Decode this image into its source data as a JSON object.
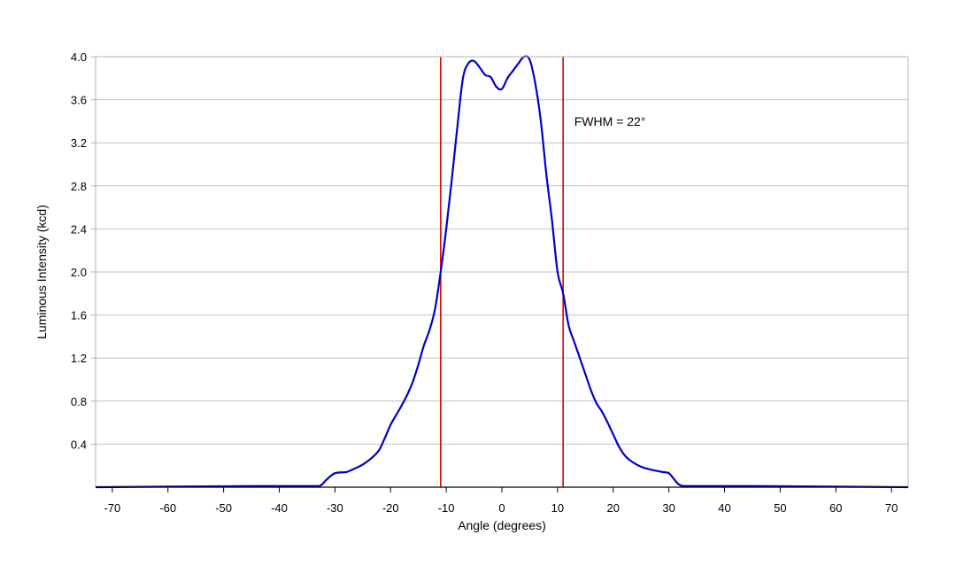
{
  "chart_data": {
    "type": "line",
    "title": "",
    "xlabel": "Angle (degrees)",
    "ylabel": "Luminous Intensity (kcd)",
    "xlim": [
      -73,
      73
    ],
    "ylim": [
      0,
      4.0
    ],
    "xticks": [
      -70,
      -60,
      -50,
      -40,
      -30,
      -20,
      -10,
      0,
      10,
      20,
      30,
      40,
      50,
      60,
      70
    ],
    "yticks": [
      0.4,
      0.8,
      1.2,
      1.6,
      2.0,
      2.4,
      2.8,
      3.2,
      3.6,
      4.0
    ],
    "xtick_labels": [
      "-70",
      "-60",
      "-50",
      "-40",
      "-30",
      "-20",
      "-10",
      "0",
      "10",
      "20",
      "30",
      "40",
      "50",
      "60",
      "70"
    ],
    "ytick_labels": [
      "0.4",
      "0.8",
      "1.2",
      "1.6",
      "2.0",
      "2.4",
      "2.8",
      "3.2",
      "3.6",
      "4.0"
    ],
    "grid": true,
    "series": [
      {
        "color": "#0000cc",
        "x": [
          -73,
          -60,
          -45,
          -34,
          -32.5,
          -31.5,
          -30,
          -28,
          -27,
          -25,
          -23,
          -22,
          -21,
          -20,
          -19,
          -18,
          -17,
          -16,
          -15,
          -14,
          -13,
          -12,
          -11,
          -10,
          -9,
          -8,
          -7,
          -6,
          -5,
          -4,
          -3,
          -2,
          -1,
          0,
          1,
          2,
          3,
          4,
          5,
          6,
          7,
          8,
          9,
          10,
          11,
          12,
          13,
          14,
          15,
          16,
          17,
          18,
          19,
          20,
          21,
          22,
          23,
          25,
          27,
          29,
          30,
          31,
          32,
          34,
          45,
          60,
          73
        ],
        "y": [
          0.0,
          0.005,
          0.01,
          0.01,
          0.02,
          0.07,
          0.13,
          0.14,
          0.16,
          0.21,
          0.29,
          0.35,
          0.46,
          0.58,
          0.67,
          0.76,
          0.86,
          0.98,
          1.14,
          1.32,
          1.46,
          1.66,
          2.0,
          2.4,
          2.86,
          3.35,
          3.8,
          3.94,
          3.96,
          3.9,
          3.83,
          3.81,
          3.72,
          3.7,
          3.8,
          3.87,
          3.94,
          4.0,
          3.97,
          3.75,
          3.4,
          2.9,
          2.48,
          2.0,
          1.8,
          1.5,
          1.35,
          1.2,
          1.05,
          0.9,
          0.78,
          0.7,
          0.6,
          0.49,
          0.38,
          0.3,
          0.25,
          0.19,
          0.16,
          0.14,
          0.13,
          0.07,
          0.02,
          0.01,
          0.01,
          0.005,
          0.0
        ]
      }
    ],
    "reference_lines": {
      "x": [
        -11,
        11
      ],
      "color": "#dd0000"
    },
    "annotation": {
      "text": "FWHM = 22°",
      "x": 13,
      "y": 3.4
    },
    "colors": {
      "grid": "#c0c0c0",
      "frame": "#b3b3b3",
      "axis": "#000000"
    }
  }
}
